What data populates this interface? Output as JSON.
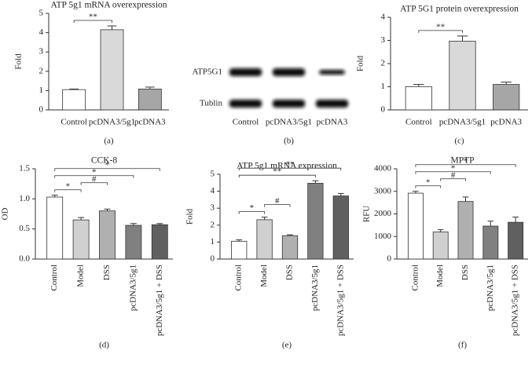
{
  "chart_data": [
    {
      "type": "bar",
      "title": "ATP 5g1 mRNA overexpression",
      "ylabel": "Fold",
      "caption": "(a)",
      "categories": [
        "Control",
        "pcDNA3/5g1",
        "pcDNA3"
      ],
      "values": [
        1.05,
        4.15,
        1.08
      ],
      "errors": [
        0.03,
        0.2,
        0.1
      ],
      "colors": [
        "#ffffff",
        "#d9d9d9",
        "#a6a6a6"
      ],
      "ylim": [
        0,
        5
      ],
      "yticks": [
        0,
        1,
        2,
        3,
        4,
        5
      ],
      "brackets": [
        {
          "label": "**",
          "span": [
            0,
            1
          ]
        }
      ]
    },
    {
      "type": "blot",
      "caption": "(b)",
      "row_labels": [
        "ATP5G1",
        "Tublin"
      ],
      "categories": [
        "Control",
        "pcDNA3/5g1",
        "pcDNA3"
      ]
    },
    {
      "type": "bar",
      "title": "ATP 5G1 protein overexpression",
      "ylabel": "Fold",
      "caption": "(c)",
      "categories": [
        "Control",
        "pcDNA3/5g1",
        "pcDNA3"
      ],
      "values": [
        1.0,
        2.97,
        1.1
      ],
      "errors": [
        0.1,
        0.22,
        0.1
      ],
      "colors": [
        "#ffffff",
        "#d9d9d9",
        "#a6a6a6"
      ],
      "ylim": [
        0,
        4
      ],
      "yticks": [
        0,
        1,
        2,
        3,
        4
      ],
      "brackets": [
        {
          "label": "**",
          "span": [
            0,
            1
          ]
        }
      ]
    },
    {
      "type": "bar",
      "title": "CCK-8",
      "ylabel": "OD",
      "caption": "(d)",
      "categories": [
        "Control",
        "Model",
        "DSS",
        "pcDNA3/5g1",
        "pcDNA3/5g1 + DSS"
      ],
      "values": [
        1.03,
        0.65,
        0.8,
        0.56,
        0.57
      ],
      "errors": [
        0.03,
        0.04,
        0.03,
        0.03,
        0.02
      ],
      "colors": [
        "#ffffff",
        "#d0d0d0",
        "#b0b0b0",
        "#808080",
        "#606060"
      ],
      "ylim": [
        0,
        1.5
      ],
      "yticks": [
        {
          "value": 0,
          "label": "0.0"
        },
        0.5,
        {
          "value": 1,
          "label": "1.0"
        },
        1.5
      ],
      "brackets": [
        {
          "label": "*",
          "span": [
            0,
            1
          ]
        },
        {
          "label": "#",
          "span": [
            1,
            2
          ]
        },
        {
          "label": "*",
          "span": [
            0,
            3
          ]
        },
        {
          "label": "*",
          "span": [
            0,
            4
          ]
        }
      ]
    },
    {
      "type": "bar",
      "title": "ATP 5g1 mRNA expression",
      "ylabel": "Fold",
      "caption": "(e)",
      "categories": [
        "Control",
        "Model",
        "DSS",
        "pcDNA3/5g1",
        "pcDNA3/5g1 + DSS"
      ],
      "values": [
        1.05,
        2.32,
        1.38,
        4.47,
        3.72
      ],
      "errors": [
        0.08,
        0.15,
        0.05,
        0.15,
        0.15
      ],
      "colors": [
        "#ffffff",
        "#d0d0d0",
        "#b0b0b0",
        "#808080",
        "#606060"
      ],
      "ylim": [
        0,
        5
      ],
      "yticks": [
        0,
        1,
        2,
        3,
        4,
        5
      ],
      "brackets": [
        {
          "label": "*",
          "span": [
            0,
            1
          ]
        },
        {
          "label": "#",
          "span": [
            1,
            2
          ]
        },
        {
          "label": "**",
          "span": [
            0,
            3
          ]
        },
        {
          "label": "**",
          "span": [
            0,
            4
          ]
        }
      ]
    },
    {
      "type": "bar",
      "title": "MPTP",
      "ylabel": "RFU",
      "caption": "(f)",
      "categories": [
        "Control",
        "Model",
        "DSS",
        "pcDNA3/5g1",
        "pcDNA3/5g1 + DSS"
      ],
      "values": [
        2920,
        1200,
        2550,
        1460,
        1630
      ],
      "errors": [
        80,
        100,
        200,
        220,
        230
      ],
      "colors": [
        "#ffffff",
        "#d0d0d0",
        "#b0b0b0",
        "#808080",
        "#606060"
      ],
      "ylim": [
        0,
        4000
      ],
      "yticks": [
        0,
        1000,
        2000,
        3000,
        4000
      ],
      "brackets": [
        {
          "label": "*",
          "span": [
            0,
            1
          ]
        },
        {
          "label": "#",
          "span": [
            1,
            2
          ]
        },
        {
          "label": "*",
          "span": [
            0,
            3
          ]
        },
        {
          "label": "*",
          "span": [
            0,
            4
          ]
        }
      ]
    }
  ]
}
